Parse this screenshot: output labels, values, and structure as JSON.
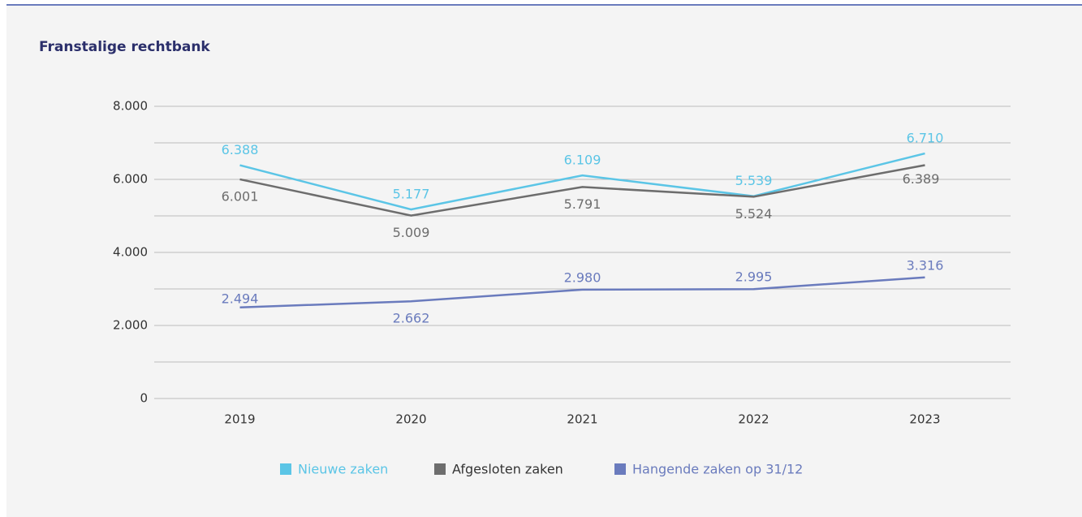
{
  "chart_data": {
    "type": "line",
    "title": "Franstalige rechtbank",
    "categories": [
      "2019",
      "2020",
      "2021",
      "2022",
      "2023"
    ],
    "series": [
      {
        "name": "Nieuwe zaken",
        "color": "#5bc5e6",
        "values": [
          6388,
          5177,
          6109,
          5539,
          6710
        ],
        "value_labels": [
          "6.388",
          "5.177",
          "6.109",
          "5.539",
          "6.710"
        ]
      },
      {
        "name": "Afgesloten zaken",
        "color": "#6d6d6d",
        "values": [
          6001,
          5009,
          5791,
          5524,
          6389
        ],
        "value_labels": [
          "6.001",
          "5.009",
          "5.791",
          "5.524",
          "6.389"
        ]
      },
      {
        "name": "Hangende zaken op 31/12",
        "color": "#6a7bbd",
        "values": [
          2494,
          2662,
          2980,
          2995,
          3316
        ],
        "value_labels": [
          "2.494",
          "2.662",
          "2.980",
          "2.995",
          "3.316"
        ]
      }
    ],
    "ylim": [
      0,
      8000
    ],
    "yticks": [
      0,
      {
        "value": 2000,
        "label": "2.000"
      },
      {
        "value": 4000,
        "label": "4.000"
      },
      {
        "value": 6000,
        "label": "6.000"
      },
      {
        "value": 8000,
        "label": "8.000"
      }
    ],
    "minor_yticks": [
      1000,
      3000,
      5000,
      7000
    ],
    "grid": true,
    "legend": "bottom"
  }
}
